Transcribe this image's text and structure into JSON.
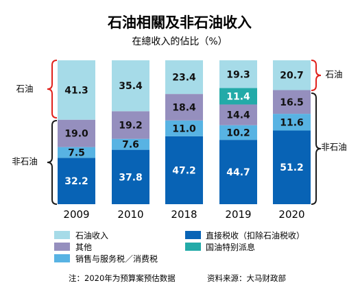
{
  "chart_data": {
    "type": "bar",
    "stacked": true,
    "title": "石油相關及非石油收入",
    "subtitle": "在總收入的佔比（%）",
    "categories": [
      "2009",
      "2010",
      "2018",
      "2019",
      "2020"
    ],
    "series": [
      {
        "name": "直接税收（扣除石油税收）",
        "color": "#0863b5",
        "values": [
          32.2,
          37.8,
          47.2,
          44.7,
          51.2
        ]
      },
      {
        "name": "销售与服务税／消费税",
        "color": "#58b3e3",
        "values": [
          7.5,
          7.6,
          11.0,
          10.2,
          11.6
        ]
      },
      {
        "name": "其他",
        "color": "#958fbe",
        "values": [
          19.0,
          19.2,
          18.4,
          14.4,
          16.5
        ]
      },
      {
        "name": "国油特别派息",
        "color": "#23aaa8",
        "values": [
          null,
          null,
          null,
          11.4,
          null
        ]
      },
      {
        "name": "石油收入",
        "color": "#a6dbe8",
        "values": [
          41.3,
          35.4,
          23.4,
          19.3,
          20.7
        ]
      }
    ],
    "ylim": [
      0,
      100
    ],
    "grid": false,
    "legend_placement": "bottom"
  },
  "brackets": {
    "oil_left": "石油",
    "nonoil_left": "非石油",
    "oil_right": "石油",
    "nonoil_right": "非石油",
    "oil_color": "#e0201b",
    "nonoil_color": "#1a1a1a"
  },
  "legend": {
    "items": [
      {
        "label": "石油收入",
        "color": "#a6dbe8"
      },
      {
        "label": "直接税收（扣除石油税收）",
        "color": "#0863b5"
      },
      {
        "label": "其他",
        "color": "#958fbe"
      },
      {
        "label": "国油特别派息",
        "color": "#23aaa8"
      },
      {
        "label": "销售与服务税／消费税",
        "color": "#58b3e3"
      }
    ]
  },
  "footer": {
    "note": "注：2020年为预算案预估数据",
    "source": "资料来源：大马财政部"
  }
}
